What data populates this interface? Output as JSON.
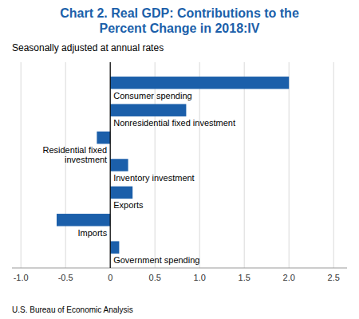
{
  "chart_data": {
    "type": "bar",
    "orientation": "horizontal",
    "title": "Chart 2. Real GDP: Contributions to the\nPercent Change in 2018:IV",
    "subtitle": "Seasonally adjusted at annual rates",
    "footer": "U.S. Bureau of Economic Analysis",
    "categories": [
      "Government spending",
      "Imports",
      "Exports",
      "Inventory investment",
      "Residential fixed\ninvestment",
      "Nonresidential fixed investment",
      "Consumer spending"
    ],
    "values": [
      0.1,
      -0.6,
      0.25,
      0.2,
      -0.15,
      0.85,
      2.0
    ],
    "color": "#1b5faa",
    "title_color": "#1b5faa",
    "xlim": [
      -1.1,
      2.65
    ],
    "xticks": [
      {
        "value": -1.0,
        "label": "-1.0"
      },
      -0.5,
      0,
      0.5,
      {
        "value": 1.0,
        "label": "1.0"
      },
      1.5,
      {
        "value": 2.0,
        "label": "2.0"
      },
      2.5
    ],
    "grid": true
  }
}
